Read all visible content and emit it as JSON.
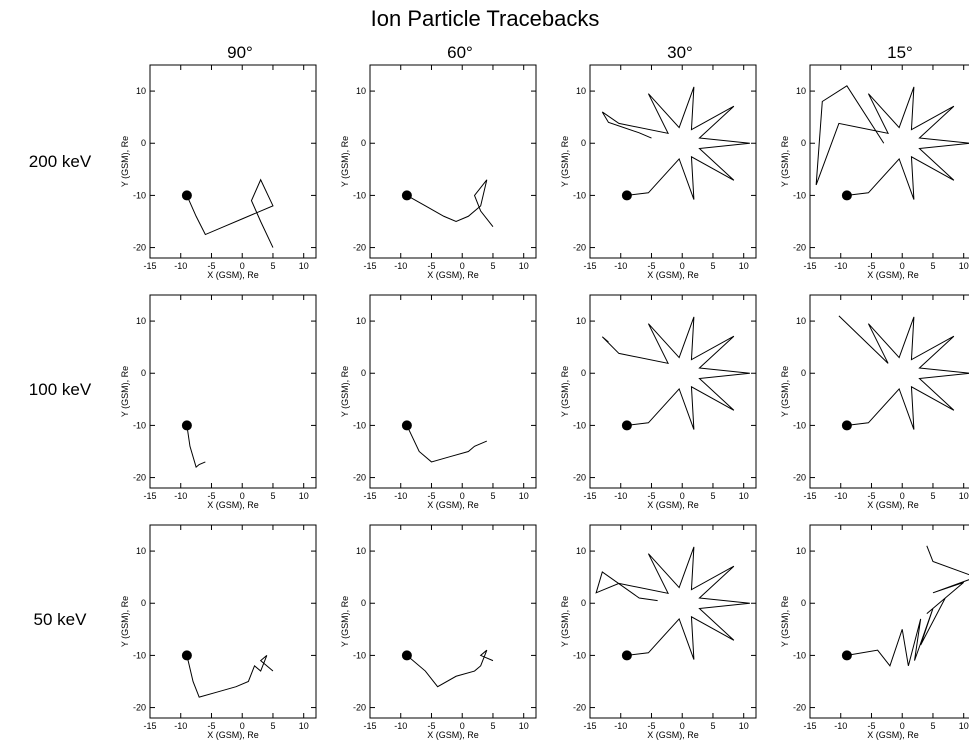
{
  "title": "Ion Particle Tracebacks",
  "columns": [
    "90°",
    "60°",
    "30°",
    "15°"
  ],
  "rows": [
    "200 keV",
    "100 keV",
    "50 keV"
  ],
  "chart_data": [
    {
      "type": "line",
      "xlabel": "X (GSM), Re",
      "ylabel": "Y (GSM), Re",
      "xlim": [
        -15,
        12
      ],
      "ylim": [
        -22,
        15
      ],
      "xticks": [
        -15,
        -10,
        -5,
        0,
        5,
        10
      ],
      "yticks": [
        -20,
        -10,
        0,
        10
      ],
      "series": [
        {
          "marker": "line",
          "x": [
            -9,
            -7.5,
            -6,
            -3,
            0,
            3,
            5,
            3,
            1.5,
            3,
            5
          ],
          "values": [
            -10,
            -14,
            -17.5,
            -16,
            -14.5,
            -13,
            -12,
            -7,
            -11,
            -15,
            -20
          ]
        },
        {
          "marker": "dot",
          "x": [
            -9
          ],
          "values": [
            -10
          ]
        }
      ]
    },
    {
      "type": "line",
      "xlabel": "X (GSM), Re",
      "ylabel": "Y (GSM), Re",
      "xlim": [
        -15,
        12
      ],
      "ylim": [
        -22,
        15
      ],
      "xticks": [
        -15,
        -10,
        -5,
        0,
        5,
        10
      ],
      "yticks": [
        -20,
        -10,
        0,
        10
      ],
      "series": [
        {
          "marker": "line",
          "x": [
            -9,
            -6,
            -3,
            -1,
            1,
            3,
            4,
            2,
            3,
            5
          ],
          "values": [
            -10,
            -12,
            -14,
            -15,
            -14,
            -12,
            -7,
            -10,
            -13,
            -16
          ]
        },
        {
          "marker": "dot",
          "x": [
            -9
          ],
          "values": [
            -10
          ]
        }
      ]
    },
    {
      "type": "line",
      "xlabel": "X (GSM), Re",
      "ylabel": "Y (GSM), Re",
      "xlim": [
        -15,
        12
      ],
      "ylim": [
        -22,
        15
      ],
      "xticks": [
        -15,
        -10,
        -5,
        0,
        5,
        10
      ],
      "yticks": [
        -20,
        -10,
        0,
        10
      ],
      "series": [
        {
          "marker": "line",
          "x": [
            -9,
            -5.5,
            -0.5,
            1.9,
            1.5,
            8.4,
            2.8,
            11,
            2.8,
            8.4,
            1.5,
            1.9,
            -0.5,
            -5.5,
            -2.3,
            -10.3,
            -13,
            -12,
            -7,
            -5
          ],
          "values": [
            -10,
            -9.5,
            -3,
            -10.8,
            -2.6,
            -7.1,
            -1,
            0,
            1,
            7.1,
            2.6,
            10.8,
            3,
            9.5,
            1.9,
            3.8,
            6,
            4,
            2,
            1
          ]
        },
        {
          "marker": "dot",
          "x": [
            -9
          ],
          "values": [
            -10
          ]
        }
      ]
    },
    {
      "type": "line",
      "xlabel": "X (GSM), Re",
      "ylabel": "Y (GSM), Re",
      "xlim": [
        -15,
        12
      ],
      "ylim": [
        -22,
        15
      ],
      "xticks": [
        -15,
        -10,
        -5,
        0,
        5,
        10
      ],
      "yticks": [
        -20,
        -10,
        0,
        10
      ],
      "series": [
        {
          "marker": "line",
          "x": [
            -9,
            -5.5,
            -0.5,
            1.9,
            1.5,
            8.4,
            2.8,
            11,
            2.8,
            8.4,
            1.5,
            1.9,
            -0.5,
            -5.5,
            -2.3,
            -10.3,
            -14,
            -13,
            -9,
            -3
          ],
          "values": [
            -10,
            -9.5,
            -3,
            -10.8,
            -2.6,
            -7.1,
            -1,
            0,
            1,
            7.1,
            2.6,
            10.8,
            3,
            9.5,
            1.9,
            3.8,
            -8,
            8,
            11,
            0
          ]
        },
        {
          "marker": "dot",
          "x": [
            -9
          ],
          "values": [
            -10
          ]
        }
      ]
    },
    {
      "type": "line",
      "xlabel": "X (GSM), Re",
      "ylabel": "Y (GSM), Re",
      "xlim": [
        -15,
        12
      ],
      "ylim": [
        -22,
        15
      ],
      "xticks": [
        -15,
        -10,
        -5,
        0,
        5,
        10
      ],
      "yticks": [
        -20,
        -10,
        0,
        10
      ],
      "series": [
        {
          "marker": "line",
          "x": [
            -9,
            -8.5,
            -7.5,
            -7,
            -6
          ],
          "values": [
            -10,
            -14,
            -18,
            -17.5,
            -17
          ]
        },
        {
          "marker": "dot",
          "x": [
            -9
          ],
          "values": [
            -10
          ]
        }
      ]
    },
    {
      "type": "line",
      "xlabel": "X (GSM), Re",
      "ylabel": "Y (GSM), Re",
      "xlim": [
        -15,
        12
      ],
      "ylim": [
        -22,
        15
      ],
      "xticks": [
        -15,
        -10,
        -5,
        0,
        5,
        10
      ],
      "yticks": [
        -20,
        -10,
        0,
        10
      ],
      "series": [
        {
          "marker": "line",
          "x": [
            -9,
            -7,
            -5,
            -2,
            1,
            2,
            3,
            4
          ],
          "values": [
            -10,
            -15,
            -17,
            -16,
            -15,
            -14,
            -13.5,
            -13
          ]
        },
        {
          "marker": "dot",
          "x": [
            -9
          ],
          "values": [
            -10
          ]
        }
      ]
    },
    {
      "type": "line",
      "xlabel": "X (GSM), Re",
      "ylabel": "Y (GSM), Re",
      "xlim": [
        -15,
        12
      ],
      "ylim": [
        -22,
        15
      ],
      "xticks": [
        -15,
        -10,
        -5,
        0,
        5,
        10
      ],
      "yticks": [
        -20,
        -10,
        0,
        10
      ],
      "series": [
        {
          "marker": "line",
          "x": [
            -9,
            -5.5,
            -0.5,
            1.9,
            1.5,
            8.4,
            2.8,
            11,
            2.8,
            8.4,
            1.5,
            1.9,
            -0.5,
            -5.5,
            -2.3,
            -10.3,
            -13,
            -12
          ],
          "values": [
            -10,
            -9.5,
            -3,
            -10.8,
            -2.6,
            -7.1,
            -1,
            0,
            1,
            7.1,
            2.6,
            10.8,
            3,
            9.5,
            1.9,
            3.8,
            7,
            6
          ]
        },
        {
          "marker": "dot",
          "x": [
            -9
          ],
          "values": [
            -10
          ]
        }
      ]
    },
    {
      "type": "line",
      "xlabel": "X (GSM), Re",
      "ylabel": "Y (GSM), Re",
      "xlim": [
        -15,
        12
      ],
      "ylim": [
        -22,
        15
      ],
      "xticks": [
        -15,
        -10,
        -5,
        0,
        5,
        10
      ],
      "yticks": [
        -20,
        -10,
        0,
        10
      ],
      "series": [
        {
          "marker": "line",
          "x": [
            -9,
            -5.5,
            -0.5,
            1.9,
            1.5,
            8.4,
            2.8,
            11,
            2.8,
            8.4,
            1.5,
            1.9,
            -0.5,
            -5.5,
            -2.3,
            -10.3
          ],
          "values": [
            -10,
            -9.5,
            -3,
            -10.8,
            -2.6,
            -7.1,
            -1,
            0,
            1,
            7.1,
            2.6,
            10.8,
            3,
            9.5,
            1.9,
            11
          ]
        },
        {
          "marker": "dot",
          "x": [
            -9
          ],
          "values": [
            -10
          ]
        }
      ]
    },
    {
      "type": "line",
      "xlabel": "X (GSM), Re",
      "ylabel": "Y (GSM), Re",
      "xlim": [
        -15,
        12
      ],
      "ylim": [
        -22,
        15
      ],
      "xticks": [
        -15,
        -10,
        -5,
        0,
        5,
        10
      ],
      "yticks": [
        -20,
        -10,
        0,
        10
      ],
      "series": [
        {
          "marker": "line",
          "x": [
            -9,
            -8,
            -7,
            -4,
            -1,
            1,
            2,
            3,
            4,
            3,
            5
          ],
          "values": [
            -10,
            -15,
            -18,
            -17,
            -16,
            -15,
            -12,
            -13,
            -10,
            -11,
            -13
          ]
        },
        {
          "marker": "dot",
          "x": [
            -9
          ],
          "values": [
            -10
          ]
        }
      ]
    },
    {
      "type": "line",
      "xlabel": "X (GSM), Re",
      "ylabel": "Y (GSM), Re",
      "xlim": [
        -15,
        12
      ],
      "ylim": [
        -22,
        15
      ],
      "xticks": [
        -15,
        -10,
        -5,
        0,
        5,
        10
      ],
      "yticks": [
        -20,
        -10,
        0,
        10
      ],
      "series": [
        {
          "marker": "line",
          "x": [
            -9,
            -6,
            -4,
            -1,
            2,
            3,
            4,
            3,
            5
          ],
          "values": [
            -10,
            -13,
            -16,
            -14,
            -13,
            -12,
            -9,
            -10,
            -11
          ]
        },
        {
          "marker": "dot",
          "x": [
            -9
          ],
          "values": [
            -10
          ]
        }
      ]
    },
    {
      "type": "line",
      "xlabel": "X (GSM), Re",
      "ylabel": "Y (GSM), Re",
      "xlim": [
        -15,
        12
      ],
      "ylim": [
        -22,
        15
      ],
      "xticks": [
        -15,
        -10,
        -5,
        0,
        5,
        10
      ],
      "yticks": [
        -20,
        -10,
        0,
        10
      ],
      "series": [
        {
          "marker": "line",
          "x": [
            -9,
            -5.5,
            -0.5,
            1.9,
            1.5,
            8.4,
            2.8,
            11,
            2.8,
            8.4,
            1.5,
            1.9,
            -0.5,
            -5.5,
            -2.3,
            -10.3,
            -14,
            -13,
            -7,
            -4
          ],
          "values": [
            -10,
            -9.5,
            -3,
            -10.8,
            -2.6,
            -7.1,
            -1,
            0,
            1,
            7.1,
            2.6,
            10.8,
            3,
            9.5,
            1.9,
            3.8,
            2,
            6,
            1,
            0.5
          ]
        },
        {
          "marker": "dot",
          "x": [
            -9
          ],
          "values": [
            -10
          ]
        }
      ]
    },
    {
      "type": "line",
      "xlabel": "X (GSM), Re",
      "ylabel": "Y (GSM), Re",
      "xlim": [
        -15,
        12
      ],
      "ylim": [
        -22,
        15
      ],
      "xticks": [
        -15,
        -10,
        -5,
        0,
        5,
        10
      ],
      "yticks": [
        -20,
        -10,
        0,
        10
      ],
      "series": [
        {
          "marker": "line",
          "x": [
            -9,
            -4,
            -2,
            0,
            1,
            3,
            2,
            5,
            3,
            7,
            4,
            10,
            5,
            12,
            5,
            4
          ],
          "values": [
            -10,
            -9,
            -12,
            -5,
            -12,
            -3,
            -11,
            -1,
            -8,
            1,
            -2,
            4,
            2,
            5,
            8,
            11
          ]
        },
        {
          "marker": "dot",
          "x": [
            -9
          ],
          "values": [
            -10
          ]
        }
      ]
    }
  ]
}
